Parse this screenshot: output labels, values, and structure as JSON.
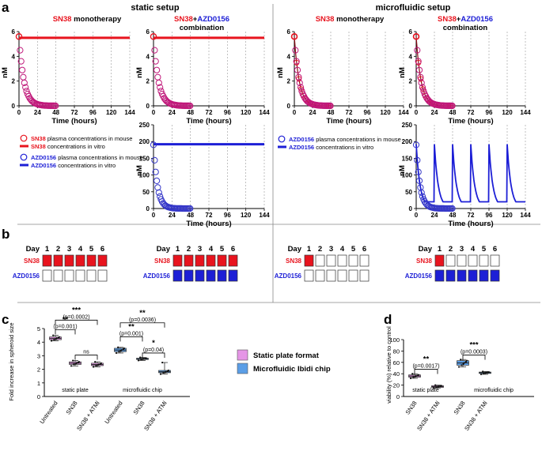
{
  "panels": {
    "a": "a",
    "b": "b",
    "c": "c",
    "d": "d"
  },
  "headers": {
    "static": "static setup",
    "microfluidic": "microfluidic setup"
  },
  "titles": {
    "mono_drug": "SN38",
    "mono_rest": " monotherapy",
    "combo_drug1": "SN38",
    "combo_plus": "+",
    "combo_drug2": "AZD0156",
    "combo_rest": "combination"
  },
  "colors": {
    "sn38": "#e8141e",
    "azd": "#1d1fd6",
    "pk_mag": "#c0187a",
    "pk_blue": "#3436c8",
    "plate": "#e596e6",
    "chip": "#5b9ee6"
  },
  "legend_a": {
    "sn38_mouse_drug": "SN38",
    "sn38_mouse_text": " plasma concentrations in mouse",
    "sn38_vitro_drug": "SN38",
    "sn38_vitro_text": " concentrations in vitro",
    "azd_mouse_drug": "AZD0156",
    "azd_mouse_text": " plasma concentrations in mouse",
    "azd_vitro_drug": "AZD0156",
    "azd_vitro_text": " concentrations in vitro"
  },
  "legend_mid": {
    "plate": "Static plate format",
    "chip": "Microfluidic Ibidi chip"
  },
  "chart_data": [
    {
      "type": "line",
      "id": "a-static-mono",
      "title": "SN38 monotherapy",
      "xlabel": "Time  (hours)",
      "ylabel": "nM",
      "xticks": [
        "0",
        "24",
        "48",
        "72",
        "96",
        "120",
        "144"
      ],
      "yticks": [
        "0",
        "2",
        "4",
        "6"
      ],
      "xlim": [
        0,
        144
      ],
      "ylim": [
        0,
        6
      ],
      "series": [
        {
          "name": "SN38 plasma concentrations in mouse",
          "model": "exp",
          "c0": 5.6,
          "half_life_h": 4.4,
          "x_end": 48
        },
        {
          "name": "SN38 concentrations in vitro",
          "x": [
            0,
            144
          ],
          "y": [
            5.5,
            5.5
          ]
        }
      ]
    },
    {
      "type": "line",
      "id": "a-static-combo-sn38",
      "title": "SN38+AZD0156 combination",
      "xlabel": "Time  (hours)",
      "ylabel": "nM",
      "xticks": [
        "0",
        "24",
        "48",
        "72",
        "96",
        "120",
        "144"
      ],
      "yticks": [
        "0",
        "2",
        "4",
        "6"
      ],
      "xlim": [
        0,
        144
      ],
      "ylim": [
        0,
        6
      ],
      "series": [
        {
          "name": "SN38 plasma concentrations in mouse",
          "model": "exp",
          "c0": 5.6,
          "half_life_h": 4.4,
          "x_end": 48
        },
        {
          "name": "SN38 concentrations in vitro",
          "x": [
            0,
            144
          ],
          "y": [
            5.5,
            5.5
          ]
        }
      ]
    },
    {
      "type": "line",
      "id": "a-micro-mono",
      "title": "SN38 monotherapy",
      "xlabel": "Time  (hours)",
      "ylabel": "nM",
      "xticks": [
        "0",
        "24",
        "48",
        "72",
        "96",
        "120",
        "144"
      ],
      "yticks": [
        "0",
        "2",
        "4",
        "6"
      ],
      "xlim": [
        0,
        144
      ],
      "ylim": [
        0,
        6
      ],
      "series": [
        {
          "name": "SN38 plasma concentrations in mouse",
          "model": "exp",
          "c0": 5.6,
          "half_life_h": 4.4,
          "x_end": 48
        },
        {
          "name": "SN38 concentrations in vitro",
          "model": "exp",
          "c0": 5.6,
          "half_life_h": 4.4,
          "x_end": 48
        }
      ]
    },
    {
      "type": "line",
      "id": "a-micro-combo-sn38",
      "title": "SN38+AZD0156 combination",
      "xlabel": "Time  (hours)",
      "ylabel": "nM",
      "xticks": [
        "0",
        "24",
        "48",
        "72",
        "96",
        "120",
        "144"
      ],
      "yticks": [
        "0",
        "2",
        "4",
        "6"
      ],
      "xlim": [
        0,
        144
      ],
      "ylim": [
        0,
        6
      ],
      "series": [
        {
          "name": "SN38 plasma concentrations in mouse",
          "model": "exp",
          "c0": 5.6,
          "half_life_h": 4.4,
          "x_end": 48
        },
        {
          "name": "SN38 concentrations in vitro",
          "model": "exp",
          "c0": 5.6,
          "half_life_h": 4.4,
          "x_end": 48
        }
      ]
    },
    {
      "type": "line",
      "id": "a-static-combo-azd",
      "title": "",
      "xlabel": "Time  (hours)",
      "ylabel": "nM",
      "xticks": [
        "0",
        "24",
        "48",
        "72",
        "96",
        "120",
        "144"
      ],
      "yticks": [
        "0",
        "50",
        "100",
        "150",
        "200",
        "250"
      ],
      "xlim": [
        0,
        144
      ],
      "ylim": [
        0,
        250
      ],
      "series": [
        {
          "name": "AZD0156 plasma concentrations in mouse",
          "model": "exp",
          "c0": 190,
          "half_life_h": 3.5,
          "x_end": 48
        },
        {
          "name": "AZD0156 concentrations in vitro",
          "x": [
            0,
            144
          ],
          "y": [
            192,
            192
          ]
        }
      ]
    },
    {
      "type": "line",
      "id": "a-micro-combo-azd",
      "title": "",
      "xlabel": "Time  (hours)",
      "ylabel": "nM",
      "xticks": [
        "0",
        "24",
        "48",
        "72",
        "96",
        "120",
        "144"
      ],
      "yticks": [
        "0",
        "50",
        "100",
        "150",
        "200",
        "250"
      ],
      "xlim": [
        0,
        144
      ],
      "ylim": [
        0,
        250
      ],
      "series": [
        {
          "name": "AZD0156 plasma concentrations in mouse",
          "model": "exp",
          "c0": 190,
          "half_life_h": 3.5,
          "x_end": 48
        },
        {
          "name": "AZD0156 concentrations in vitro",
          "model": "periodic",
          "dose_times": [
            0,
            24,
            48,
            72,
            96,
            120
          ],
          "c0": 192,
          "half_life_h": 3.5,
          "floor": 20,
          "x_end": 144
        }
      ]
    },
    {
      "type": "table",
      "id": "b-dosing",
      "day_label": "Day",
      "days": [
        "1",
        "2",
        "3",
        "4",
        "5",
        "6"
      ],
      "row_labels": [
        "SN38",
        "AZD0156"
      ],
      "schemes": [
        {
          "setup": "static mono",
          "sn38": [
            1,
            1,
            1,
            1,
            1,
            1
          ],
          "azd": [
            0,
            0,
            0,
            0,
            0,
            0
          ]
        },
        {
          "setup": "static combination",
          "sn38": [
            1,
            1,
            1,
            1,
            1,
            1
          ],
          "azd": [
            1,
            1,
            1,
            1,
            1,
            1
          ]
        },
        {
          "setup": "microfluidic mono",
          "sn38": [
            1,
            0,
            0,
            0,
            0,
            0
          ],
          "azd": [
            0,
            0,
            0,
            0,
            0,
            0
          ]
        },
        {
          "setup": "microfluidic combination",
          "sn38": [
            1,
            0,
            0,
            0,
            0,
            0
          ],
          "azd": [
            1,
            1,
            1,
            1,
            1,
            1
          ]
        }
      ]
    },
    {
      "type": "box",
      "id": "c-spheroid",
      "ylabel": "Fold increase in spheroid size",
      "ylim": [
        0,
        5
      ],
      "yticks": [
        "0",
        "1",
        "2",
        "3",
        "4",
        "5"
      ],
      "categories": [
        "Untreated",
        "SN38",
        "SN38 + ATMi",
        "Untreated",
        "SN38",
        "SN38 + ATMi"
      ],
      "groups": [
        "static plate",
        "microfluidic chip"
      ],
      "series": [
        {
          "name": "Static plate format",
          "boxes": [
            {
              "min": 4.1,
              "q1": 4.18,
              "med": 4.28,
              "q3": 4.38,
              "max": 4.5
            },
            {
              "min": 2.25,
              "q1": 2.36,
              "med": 2.45,
              "q3": 2.55,
              "max": 2.65
            },
            {
              "min": 2.18,
              "q1": 2.27,
              "med": 2.35,
              "q3": 2.45,
              "max": 2.55
            }
          ]
        },
        {
          "name": "Microfluidic Ibidi chip",
          "boxes": [
            {
              "min": 3.2,
              "q1": 3.3,
              "med": 3.42,
              "q3": 3.55,
              "max": 3.62
            },
            {
              "min": 2.65,
              "q1": 2.72,
              "med": 2.78,
              "q3": 2.82,
              "max": 2.88
            },
            {
              "min": 1.65,
              "q1": 1.75,
              "med": 1.82,
              "q3": 1.92,
              "max": 2.5
            }
          ]
        }
      ],
      "annotations": [
        {
          "sig": "***",
          "p": "(p=0.0002)"
        },
        {
          "sig": "**",
          "p": "(p=0.001)"
        },
        {
          "sig": "ns",
          "p": ""
        },
        {
          "sig": "**",
          "p": "(p=0.0036)"
        },
        {
          "sig": "**",
          "p": "(p=0.001)"
        },
        {
          "sig": "*",
          "p": "(p=0.04)"
        }
      ]
    },
    {
      "type": "box",
      "id": "d-viability",
      "ylabel": "viability (%) relative to control",
      "ylim": [
        0,
        100
      ],
      "yticks": [
        "0",
        "20",
        "40",
        "60",
        "80",
        "100"
      ],
      "categories": [
        "SN38",
        "SN38 + ATMi",
        "SN38",
        "SN38 + ATMi"
      ],
      "groups": [
        "static plate",
        "microfluidic chip"
      ],
      "series": [
        {
          "name": "Static plate format",
          "boxes": [
            {
              "min": 32,
              "q1": 34,
              "med": 36,
              "q3": 38,
              "max": 40
            },
            {
              "min": 15,
              "q1": 16,
              "med": 17.5,
              "q3": 19,
              "max": 20
            }
          ]
        },
        {
          "name": "Microfluidic Ibidi chip",
          "boxes": [
            {
              "min": 52,
              "q1": 55,
              "med": 59,
              "q3": 63,
              "max": 65
            },
            {
              "min": 39,
              "q1": 40.5,
              "med": 42,
              "q3": 43,
              "max": 44
            }
          ]
        }
      ],
      "annotations": [
        {
          "sig": "**",
          "p": "(p=0.0017)"
        },
        {
          "sig": "***",
          "p": "(p=0.0003)"
        }
      ]
    }
  ]
}
